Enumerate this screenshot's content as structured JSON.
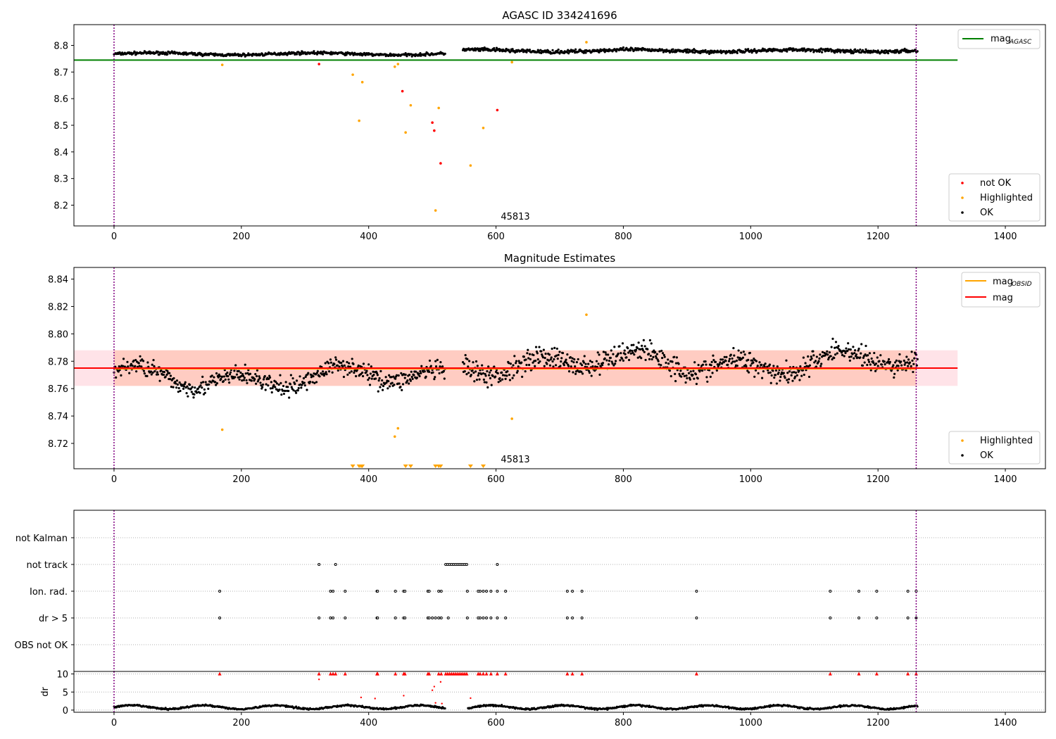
{
  "figure": {
    "title_top": "AGASC ID 334241696",
    "title_mid": "Magnitude Estimates",
    "obsid_label": "45813"
  },
  "colors": {
    "ok": "#000000",
    "highlighted": "#ffa500",
    "not_ok": "#ff0000",
    "mag_agasc": "#008000",
    "mag": "#ff0000",
    "mag_obsid": "#ffa500",
    "band_outer": "#ffc0cb",
    "band_inner": "#ffa07a",
    "vline": "#800080"
  },
  "chart_data": [
    {
      "type": "scatter",
      "title": "AGASC ID 334241696",
      "xlim": [
        -63,
        1463
      ],
      "ylim": [
        8.122,
        8.878
      ],
      "xticks": [
        0,
        200,
        400,
        600,
        800,
        1000,
        1200,
        1400
      ],
      "yticks": [
        8.2,
        8.3,
        8.4,
        8.5,
        8.6,
        8.7,
        8.8
      ],
      "vlines": [
        0,
        1260
      ],
      "hlines": [
        {
          "name": "mag_AGASC",
          "y": 8.745
        }
      ],
      "annotation": "45813",
      "legend_lines": [
        {
          "label": "mag",
          "sub": "AGASC"
        }
      ],
      "legend_points": [
        "not OK",
        "Highlighted",
        "OK"
      ],
      "ok_segments": [
        {
          "x": [
            0,
            520
          ],
          "level": 8.768,
          "jitter": 0.008
        },
        {
          "x": [
            548,
            1262
          ],
          "level": 8.78,
          "jitter": 0.01
        }
      ],
      "series": [
        {
          "name": "Highlighted",
          "points": [
            [
              170,
              8.727
            ],
            [
              375,
              8.69
            ],
            [
              385,
              8.517
            ],
            [
              390,
              8.662
            ],
            [
              441,
              8.72
            ],
            [
              446,
              8.73
            ],
            [
              458,
              8.473
            ],
            [
              466,
              8.575
            ],
            [
              505,
              8.18
            ],
            [
              510,
              8.565
            ],
            [
              560,
              8.349
            ],
            [
              580,
              8.49
            ],
            [
              625,
              8.737
            ],
            [
              742,
              8.812
            ]
          ]
        },
        {
          "name": "not OK",
          "points": [
            [
              322,
              8.73
            ],
            [
              453,
              8.628
            ],
            [
              500,
              8.51
            ],
            [
              503,
              8.48
            ],
            [
              513,
              8.357
            ],
            [
              602,
              8.557
            ]
          ]
        }
      ]
    },
    {
      "type": "scatter",
      "title": "Magnitude Estimates",
      "xlim": [
        -63,
        1463
      ],
      "ylim": [
        8.7015,
        8.8485
      ],
      "xticks": [
        0,
        200,
        400,
        600,
        800,
        1000,
        1200,
        1400
      ],
      "yticks": [
        8.72,
        8.74,
        8.76,
        8.78,
        8.8,
        8.82,
        8.84
      ],
      "vlines": [
        0,
        1260
      ],
      "mag": 8.775,
      "mag_obsid": 8.7745,
      "band_outer": [
        8.762,
        8.788
      ],
      "band_inner": [
        8.762,
        8.788
      ],
      "band_xrange": [
        -63,
        1325
      ],
      "annotation": "45813",
      "legend_lines": [
        {
          "label": "mag",
          "sub": "OBSID"
        },
        {
          "label": "mag",
          "sub": ""
        }
      ],
      "legend_points": [
        "Highlighted",
        "OK"
      ],
      "ok_segments": [
        {
          "x": [
            0,
            520
          ],
          "level": 8.768,
          "jitter": 0.01
        },
        {
          "x": [
            548,
            1262
          ],
          "level": 8.779,
          "jitter": 0.012
        }
      ],
      "series": [
        {
          "name": "Highlighted",
          "points": [
            [
              170,
              8.73
            ],
            [
              441,
              8.725
            ],
            [
              446,
              8.731
            ],
            [
              625,
              8.738
            ],
            [
              742,
              8.814
            ]
          ]
        },
        {
          "name": "Highlighted (below range)",
          "x": [
            375,
            385,
            388,
            390,
            458,
            466,
            505,
            510,
            513,
            560,
            580
          ]
        }
      ]
    },
    {
      "type": "scatter",
      "title": "",
      "xlim": [
        -63,
        1463
      ],
      "categories": [
        "not Kalman",
        "not track",
        "Ion. rad.",
        "dr > 5",
        "OBS not OK"
      ],
      "flags": {
        "not track": [
          322,
          348,
          521,
          524,
          527,
          530,
          533,
          536,
          539,
          542,
          545,
          548,
          551,
          554,
          602
        ],
        "Ion. rad.": [
          166,
          340,
          344,
          363,
          413,
          414,
          442,
          455,
          457,
          493,
          495,
          510,
          514,
          555,
          572,
          575,
          580,
          585,
          592,
          602,
          615,
          712,
          720,
          735,
          915,
          1125,
          1170,
          1198,
          1247,
          1260
        ],
        "dr > 5": [
          166,
          322,
          340,
          344,
          363,
          413,
          414,
          442,
          455,
          457,
          493,
          495,
          500,
          505,
          510,
          514,
          525,
          555,
          572,
          575,
          580,
          585,
          592,
          602,
          615,
          712,
          720,
          735,
          915,
          1125,
          1170,
          1198,
          1247,
          1260
        ]
      }
    },
    {
      "type": "scatter",
      "ylabel": "dr",
      "xlim": [
        -63,
        1463
      ],
      "ylim": [
        -0.6,
        10.7
      ],
      "xticks": [
        0,
        200,
        400,
        600,
        800,
        1000,
        1200,
        1400
      ],
      "yticks": [
        0,
        5,
        10
      ],
      "vlines": [
        0,
        1260
      ],
      "clipped_high": [
        166,
        322,
        340,
        344,
        348,
        363,
        413,
        414,
        442,
        455,
        457,
        493,
        495,
        510,
        514,
        521,
        524,
        527,
        530,
        533,
        536,
        539,
        542,
        545,
        548,
        551,
        554,
        572,
        575,
        580,
        585,
        592,
        602,
        615,
        712,
        720,
        735,
        915,
        1125,
        1170,
        1198,
        1247,
        1260
      ],
      "outliers": [
        [
          322,
          8.5
        ],
        [
          388,
          3.5
        ],
        [
          410,
          3.2
        ],
        [
          455,
          4.0
        ],
        [
          500,
          5.5
        ],
        [
          503,
          6.5
        ],
        [
          513,
          7.8
        ],
        [
          560,
          3.3
        ],
        [
          505,
          2.0
        ],
        [
          515,
          1.8
        ]
      ],
      "baseline": {
        "level": 0.8,
        "jitter": 0.7
      }
    }
  ]
}
